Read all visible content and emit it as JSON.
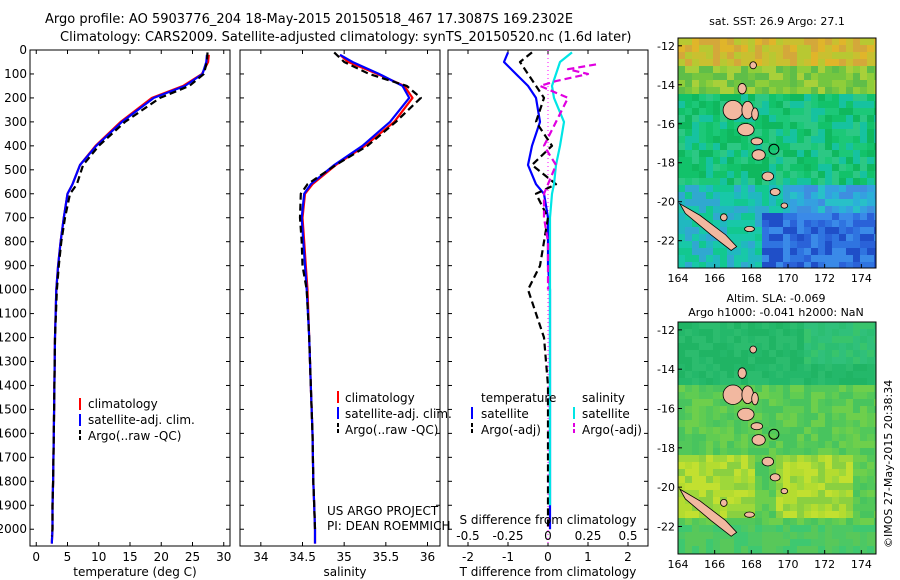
{
  "header": {
    "title_line1": "Argo profile: AO 5903776_204 18-May-2015 20150518_467 17.3087S 169.2302E",
    "title_line2": "Climatology: CARS2009. Satellite-adjusted climatology: synTS_20150520.nc (1.6d later)"
  },
  "colors": {
    "climatology": "#ff0000",
    "satellite": "#0000ff",
    "argo": "#000000",
    "sal_satellite": "#00e5e5",
    "sal_argo": "#e000e0",
    "land": "#f2b8a0"
  },
  "chart_data": [
    {
      "type": "line",
      "id": "temperature",
      "xlabel": "temperature (deg C)",
      "ylabel": "",
      "xlim": [
        -1,
        31
      ],
      "ylim": [
        0,
        2070
      ],
      "y_inverted": true,
      "xticks": [
        0,
        5,
        10,
        15,
        20,
        25,
        30
      ],
      "yticks": [
        0,
        100,
        200,
        300,
        400,
        500,
        600,
        700,
        800,
        900,
        1000,
        1100,
        1200,
        1300,
        1400,
        1500,
        1600,
        1700,
        1800,
        1900,
        2000
      ],
      "legend": [
        "climatology",
        "satellite-adj. clim.",
        "Argo(..raw -QC)"
      ],
      "series": [
        {
          "name": "climatology",
          "style": "solid",
          "color": "#ff0000",
          "x": [
            27.6,
            27.5,
            26.5,
            23.5,
            18.5,
            13.5,
            9.5,
            7.0,
            5.8,
            5.0,
            4.4,
            3.9,
            3.5,
            3.2,
            3.0,
            2.9,
            2.8,
            2.7,
            2.6,
            2.6,
            2.5,
            2.5
          ],
          "y": [
            20,
            50,
            100,
            150,
            200,
            300,
            400,
            480,
            560,
            600,
            700,
            800,
            900,
            1000,
            1200,
            1400,
            1600,
            1800,
            1900,
            2000,
            2050,
            2060
          ]
        },
        {
          "name": "satellite-adj. clim.",
          "style": "solid",
          "color": "#0000ff",
          "x": [
            27.3,
            27.2,
            26.6,
            23.8,
            18.8,
            13.7,
            9.6,
            7.0,
            5.8,
            5.0,
            4.4,
            3.9,
            3.5,
            3.2,
            3.0,
            2.9,
            2.8,
            2.7,
            2.6,
            2.6,
            2.5,
            2.5
          ],
          "y": [
            20,
            50,
            100,
            150,
            200,
            300,
            400,
            480,
            560,
            600,
            700,
            800,
            900,
            1000,
            1200,
            1400,
            1600,
            1800,
            1900,
            2000,
            2050,
            2060
          ]
        },
        {
          "name": "Argo(..raw -QC)",
          "style": "dashed",
          "color": "#000000",
          "x": [
            27.4,
            27.3,
            26.8,
            24.5,
            19.8,
            14.2,
            10.0,
            7.5,
            6.5,
            5.4,
            4.6,
            4.0,
            3.6,
            3.3,
            3.0,
            2.9,
            2.8,
            2.7,
            2.6,
            2.6,
            2.5
          ],
          "y": [
            10,
            50,
            100,
            150,
            200,
            300,
            400,
            480,
            560,
            600,
            700,
            800,
            900,
            1000,
            1200,
            1400,
            1600,
            1800,
            1900,
            2000,
            2030
          ]
        }
      ]
    },
    {
      "type": "line",
      "id": "salinity",
      "xlabel": "salinity",
      "ylabel": "",
      "xlim": [
        33.75,
        36.15
      ],
      "ylim": [
        0,
        2070
      ],
      "y_inverted": true,
      "xticks": [
        34,
        34.5,
        35,
        35.5,
        36
      ],
      "xtick_labels": [
        "34",
        "34.5",
        "35",
        "35.5",
        "36"
      ],
      "legend": [
        "climatology",
        "satellite-adj. clim.",
        "Argo(..raw -QC)"
      ],
      "series": [
        {
          "name": "climatology",
          "style": "solid",
          "color": "#ff0000",
          "x": [
            34.95,
            35.05,
            35.4,
            35.72,
            35.82,
            35.6,
            35.25,
            34.9,
            34.62,
            34.53,
            34.5,
            34.52,
            34.54,
            34.56,
            34.58,
            34.6,
            34.62,
            34.63,
            34.64,
            34.65,
            34.65
          ],
          "y": [
            20,
            50,
            100,
            150,
            200,
            300,
            400,
            480,
            560,
            600,
            700,
            800,
            900,
            1000,
            1200,
            1400,
            1600,
            1800,
            1900,
            2000,
            2060
          ]
        },
        {
          "name": "satellite-adj. clim.",
          "style": "solid",
          "color": "#0000ff",
          "x": [
            34.95,
            35.1,
            35.42,
            35.7,
            35.78,
            35.55,
            35.22,
            34.88,
            34.6,
            34.52,
            34.49,
            34.51,
            34.53,
            34.55,
            34.58,
            34.6,
            34.62,
            34.63,
            34.64,
            34.65,
            34.65
          ],
          "y": [
            20,
            50,
            100,
            150,
            200,
            300,
            400,
            480,
            560,
            600,
            700,
            800,
            900,
            1000,
            1200,
            1400,
            1600,
            1800,
            1900,
            2000,
            2060
          ]
        },
        {
          "name": "Argo(..raw -QC)",
          "style": "dashed",
          "color": "#000000",
          "x": [
            34.88,
            35.0,
            35.3,
            35.75,
            35.92,
            35.62,
            35.28,
            34.9,
            34.56,
            34.48,
            34.47,
            34.49,
            34.5,
            34.55,
            34.58,
            34.6,
            34.62,
            34.63,
            34.64,
            34.65
          ],
          "y": [
            10,
            50,
            100,
            150,
            200,
            300,
            400,
            480,
            560,
            600,
            700,
            800,
            900,
            1000,
            1200,
            1400,
            1600,
            1800,
            1900,
            2000
          ]
        }
      ],
      "annotations": [
        "US ARGO PROJECT",
        "PI: DEAN ROEMMICH"
      ]
    },
    {
      "type": "line",
      "id": "difference",
      "xlabel": "T difference from climatology",
      "top_label": "S difference from climatology",
      "xlim": [
        -2.5,
        2.5
      ],
      "ylim": [
        0,
        2070
      ],
      "y_inverted": true,
      "xticks": [
        -2,
        -1,
        0,
        1,
        2
      ],
      "sticks_label": [
        "-0.5",
        "-0.25",
        "0",
        "0.25",
        "0.5"
      ],
      "legend_temperature": [
        "temperature",
        "satellite",
        "Argo(-adj)"
      ],
      "legend_salinity": [
        "salinity",
        "satellite",
        "Argo(-adj)"
      ],
      "series": [
        {
          "name": "temperature satellite",
          "style": "solid",
          "color": "#0000ff",
          "x": [
            -1.0,
            -1.1,
            -0.8,
            -0.5,
            -0.3,
            -0.2,
            -0.4,
            -0.5,
            -0.3,
            -0.1,
            0.0,
            0.0,
            0.0,
            0.05,
            0.05,
            0.05,
            0.05,
            0.05,
            0.05,
            0.05
          ],
          "y": [
            10,
            50,
            100,
            150,
            200,
            300,
            400,
            480,
            560,
            600,
            700,
            800,
            900,
            1000,
            1200,
            1400,
            1600,
            1800,
            1900,
            2000
          ]
        },
        {
          "name": "temperature Argo(-adj)",
          "style": "dashed",
          "color": "#000000",
          "x": [
            -0.4,
            -0.7,
            -0.5,
            -0.3,
            -0.1,
            -0.3,
            0.1,
            -0.4,
            0.2,
            -0.3,
            0.0,
            -0.1,
            -0.2,
            -0.5,
            -0.1,
            0.0,
            0.0,
            0.0,
            0.0,
            0.0
          ],
          "y": [
            10,
            50,
            100,
            150,
            200,
            300,
            400,
            480,
            560,
            600,
            700,
            800,
            900,
            1000,
            1200,
            1400,
            1600,
            1800,
            1900,
            2000
          ]
        },
        {
          "name": "salinity satellite",
          "style": "solid",
          "color": "#00e5e5",
          "x": [
            0.6,
            0.3,
            0.2,
            0.1,
            0.15,
            0.4,
            0.3,
            0.2,
            0.15,
            0.1,
            0.05,
            0.05,
            0.05,
            0.05,
            0.05,
            0.05,
            0.05,
            0.05,
            0.05
          ],
          "y": [
            10,
            50,
            100,
            150,
            200,
            300,
            400,
            480,
            560,
            600,
            700,
            800,
            900,
            1000,
            1200,
            1400,
            1600,
            1800,
            1900
          ]
        },
        {
          "name": "salinity Argo(-adj)",
          "style": "dashed",
          "color": "#e000e0",
          "x": [
            1.2,
            0.5,
            1.0,
            0.2,
            -0.2,
            0.5,
            -0.1,
            0.2,
            -0.1,
            -0.1,
            0.0,
            0.0,
            0.0
          ],
          "y": [
            60,
            80,
            100,
            130,
            150,
            200,
            400,
            480,
            600,
            700,
            800,
            900,
            1000
          ]
        }
      ]
    },
    {
      "type": "heatmap",
      "id": "sst_map",
      "title": "sat. SST: 26.9 Argo: 27.1",
      "xlim": [
        164,
        174.8
      ],
      "ylim": [
        -23.4,
        -11.6
      ],
      "xticks": [
        164,
        166,
        168,
        170,
        172,
        174
      ],
      "yticks": [
        -12,
        -14,
        -16,
        -18,
        -20,
        -22
      ],
      "argo_marker": {
        "lon": 169.2302,
        "lat": -17.3087
      }
    },
    {
      "type": "heatmap",
      "id": "sla_map",
      "title_line1": "Altim. SLA: -0.069",
      "title_line2": "Argo h1000: -0.041 h2000: NaN",
      "xlim": [
        164,
        174.8
      ],
      "ylim": [
        -23.4,
        -11.6
      ],
      "xticks": [
        164,
        166,
        168,
        170,
        172,
        174
      ],
      "yticks": [
        -12,
        -14,
        -16,
        -18,
        -20,
        -22
      ],
      "argo_marker": {
        "lon": 169.2302,
        "lat": -17.3087
      }
    }
  ],
  "footer": {
    "credit": "©IMOS 27-May-2015 20:38:34"
  }
}
